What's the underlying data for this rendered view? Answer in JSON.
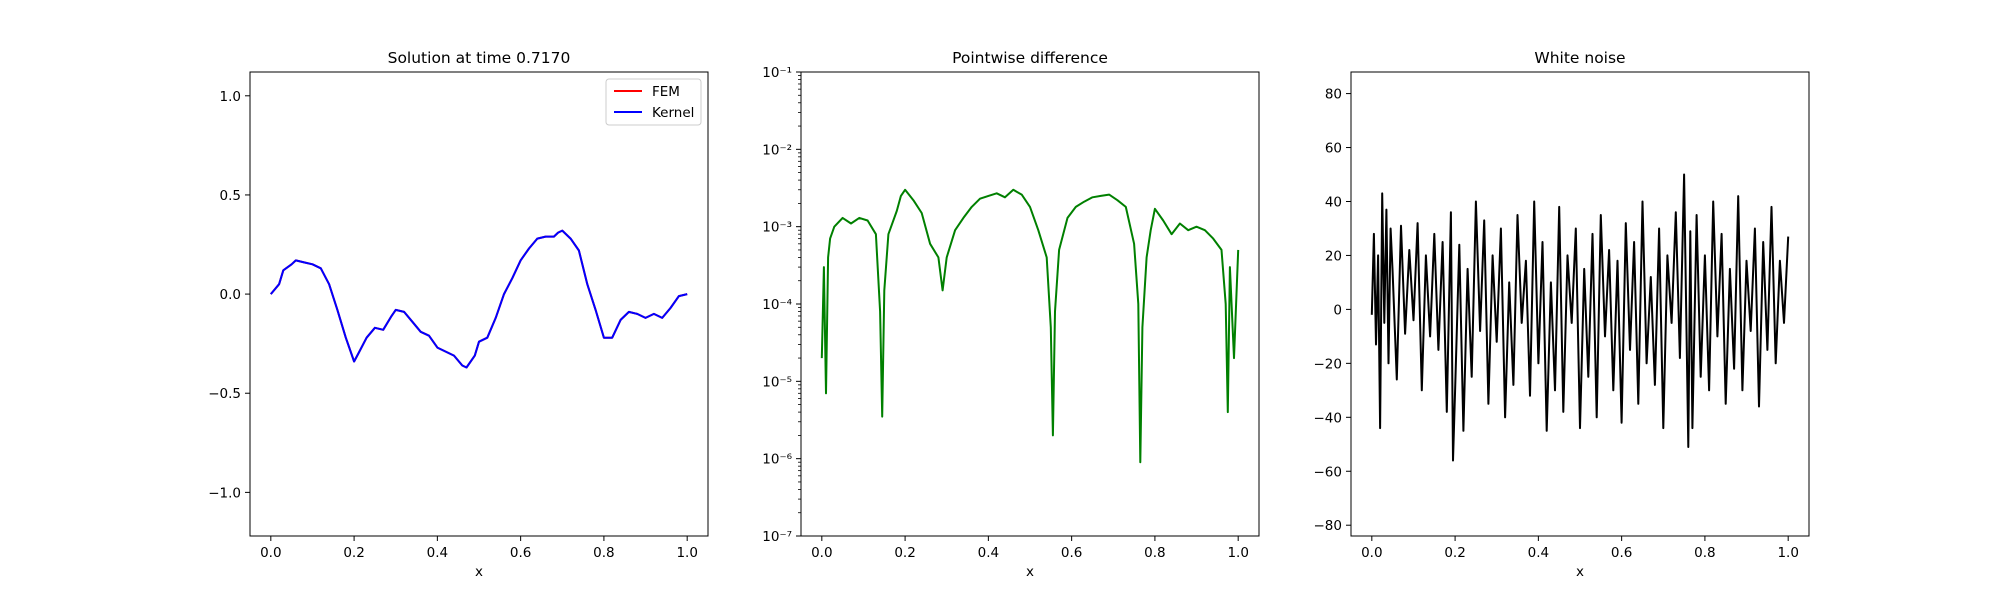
{
  "chart_data": [
    {
      "type": "line",
      "title": "Solution at time 0.7170",
      "xlabel": "x",
      "ylabel": "",
      "xlim": [
        -0.05,
        1.05
      ],
      "ylim": [
        -1.22,
        1.12
      ],
      "x_ticks": [
        0.0,
        0.2,
        0.4,
        0.6,
        0.8,
        1.0
      ],
      "x_tick_labels": [
        "0.0",
        "0.2",
        "0.4",
        "0.6",
        "0.8",
        "1.0"
      ],
      "y_ticks": [
        -1.0,
        -0.5,
        0.0,
        0.5,
        1.0
      ],
      "y_tick_labels": [
        "−1.0",
        "−0.5",
        "0.0",
        "0.5",
        "1.0"
      ],
      "legend_position": "top-right",
      "series": [
        {
          "name": "FEM",
          "color": "#ff0000",
          "x": [
            0.0,
            0.02,
            0.03,
            0.05,
            0.06,
            0.08,
            0.1,
            0.12,
            0.14,
            0.16,
            0.18,
            0.2,
            0.21,
            0.23,
            0.25,
            0.27,
            0.29,
            0.3,
            0.32,
            0.34,
            0.36,
            0.38,
            0.4,
            0.42,
            0.44,
            0.46,
            0.47,
            0.49,
            0.5,
            0.52,
            0.54,
            0.56,
            0.58,
            0.6,
            0.62,
            0.64,
            0.66,
            0.68,
            0.69,
            0.7,
            0.72,
            0.74,
            0.76,
            0.78,
            0.8,
            0.82,
            0.84,
            0.86,
            0.88,
            0.9,
            0.92,
            0.94,
            0.96,
            0.98,
            1.0
          ],
          "y": [
            0.0,
            0.05,
            0.12,
            0.15,
            0.17,
            0.16,
            0.15,
            0.13,
            0.05,
            -0.08,
            -0.22,
            -0.34,
            -0.3,
            -0.22,
            -0.17,
            -0.18,
            -0.11,
            -0.08,
            -0.09,
            -0.14,
            -0.19,
            -0.21,
            -0.27,
            -0.29,
            -0.31,
            -0.36,
            -0.37,
            -0.31,
            -0.24,
            -0.22,
            -0.12,
            0.0,
            0.08,
            0.17,
            0.23,
            0.28,
            0.29,
            0.29,
            0.31,
            0.32,
            0.28,
            0.22,
            0.05,
            -0.08,
            -0.22,
            -0.22,
            -0.13,
            -0.09,
            -0.1,
            -0.12,
            -0.1,
            -0.12,
            -0.07,
            -0.01,
            0.0
          ]
        },
        {
          "name": "Kernel",
          "color": "#0000ff",
          "x": [
            0.0,
            0.02,
            0.03,
            0.05,
            0.06,
            0.08,
            0.1,
            0.12,
            0.14,
            0.16,
            0.18,
            0.2,
            0.21,
            0.23,
            0.25,
            0.27,
            0.29,
            0.3,
            0.32,
            0.34,
            0.36,
            0.38,
            0.4,
            0.42,
            0.44,
            0.46,
            0.47,
            0.49,
            0.5,
            0.52,
            0.54,
            0.56,
            0.58,
            0.6,
            0.62,
            0.64,
            0.66,
            0.68,
            0.69,
            0.7,
            0.72,
            0.74,
            0.76,
            0.78,
            0.8,
            0.82,
            0.84,
            0.86,
            0.88,
            0.9,
            0.92,
            0.94,
            0.96,
            0.98,
            1.0
          ],
          "y": [
            0.0,
            0.05,
            0.12,
            0.15,
            0.17,
            0.16,
            0.15,
            0.13,
            0.05,
            -0.08,
            -0.22,
            -0.34,
            -0.3,
            -0.22,
            -0.17,
            -0.18,
            -0.11,
            -0.08,
            -0.09,
            -0.14,
            -0.19,
            -0.21,
            -0.27,
            -0.29,
            -0.31,
            -0.36,
            -0.37,
            -0.31,
            -0.24,
            -0.22,
            -0.12,
            0.0,
            0.08,
            0.17,
            0.23,
            0.28,
            0.29,
            0.29,
            0.31,
            0.32,
            0.28,
            0.22,
            0.05,
            -0.08,
            -0.22,
            -0.22,
            -0.13,
            -0.09,
            -0.1,
            -0.12,
            -0.1,
            -0.12,
            -0.07,
            -0.01,
            0.0
          ]
        }
      ]
    },
    {
      "type": "line",
      "title": "Pointwise difference",
      "xlabel": "x",
      "ylabel": "",
      "y_scale": "log",
      "xlim": [
        -0.05,
        1.05
      ],
      "ylim": [
        1e-07,
        0.1
      ],
      "x_ticks": [
        0.0,
        0.2,
        0.4,
        0.6,
        0.8,
        1.0
      ],
      "x_tick_labels": [
        "0.0",
        "0.2",
        "0.4",
        "0.6",
        "0.8",
        "1.0"
      ],
      "y_ticks": [
        1e-07,
        1e-06,
        1e-05,
        0.0001,
        0.001,
        0.01,
        0.1
      ],
      "y_tick_labels": [
        "10⁻⁷",
        "10⁻⁶",
        "10⁻⁵",
        "10⁻⁴",
        "10⁻³",
        "10⁻²",
        "10⁻¹"
      ],
      "series": [
        {
          "name": "",
          "color": "#008000",
          "x": [
            0.0,
            0.005,
            0.01,
            0.015,
            0.02,
            0.03,
            0.05,
            0.07,
            0.09,
            0.11,
            0.13,
            0.14,
            0.145,
            0.15,
            0.16,
            0.18,
            0.19,
            0.2,
            0.22,
            0.24,
            0.26,
            0.28,
            0.29,
            0.3,
            0.31,
            0.32,
            0.34,
            0.36,
            0.38,
            0.4,
            0.42,
            0.44,
            0.46,
            0.48,
            0.5,
            0.52,
            0.54,
            0.55,
            0.555,
            0.56,
            0.57,
            0.59,
            0.61,
            0.63,
            0.65,
            0.67,
            0.69,
            0.71,
            0.73,
            0.75,
            0.76,
            0.765,
            0.77,
            0.78,
            0.79,
            0.8,
            0.82,
            0.84,
            0.86,
            0.88,
            0.9,
            0.92,
            0.94,
            0.96,
            0.97,
            0.975,
            0.98,
            0.99,
            1.0
          ],
          "y": [
            2e-05,
            0.0003,
            7e-06,
            0.0004,
            0.0007,
            0.001,
            0.0013,
            0.0011,
            0.0013,
            0.0012,
            0.0008,
            8e-05,
            3.5e-06,
            0.00015,
            0.0008,
            0.0016,
            0.0025,
            0.003,
            0.0022,
            0.0015,
            0.0006,
            0.0004,
            0.00015,
            0.0004,
            0.0006,
            0.0009,
            0.0013,
            0.0018,
            0.0023,
            0.0025,
            0.0027,
            0.0024,
            0.003,
            0.0026,
            0.0018,
            0.0009,
            0.0004,
            5e-05,
            2e-06,
            8e-05,
            0.0005,
            0.0013,
            0.0018,
            0.0021,
            0.0024,
            0.0025,
            0.0026,
            0.0022,
            0.0018,
            0.0006,
            0.0001,
            9e-07,
            5e-05,
            0.0004,
            0.0009,
            0.0017,
            0.0012,
            0.0008,
            0.0011,
            0.0009,
            0.001,
            0.0009,
            0.0007,
            0.0005,
            0.0001,
            4e-06,
            0.0003,
            2e-05,
            0.0005
          ]
        }
      ]
    },
    {
      "type": "line",
      "title": "White noise",
      "xlabel": "x",
      "ylabel": "",
      "xlim": [
        -0.05,
        1.05
      ],
      "ylim": [
        -84,
        88
      ],
      "x_ticks": [
        0.0,
        0.2,
        0.4,
        0.6,
        0.8,
        1.0
      ],
      "x_tick_labels": [
        "0.0",
        "0.2",
        "0.4",
        "0.6",
        "0.8",
        "1.0"
      ],
      "y_ticks": [
        -80,
        -60,
        -40,
        -20,
        0,
        20,
        40,
        60,
        80
      ],
      "y_tick_labels": [
        "−80",
        "−60",
        "−40",
        "−20",
        "0",
        "20",
        "40",
        "60",
        "80"
      ],
      "series": [
        {
          "name": "",
          "color": "#000000",
          "x": [
            0.0,
            0.005,
            0.01,
            0.015,
            0.02,
            0.025,
            0.03,
            0.035,
            0.04,
            0.045,
            0.05,
            0.06,
            0.07,
            0.08,
            0.09,
            0.1,
            0.11,
            0.12,
            0.13,
            0.14,
            0.15,
            0.16,
            0.17,
            0.18,
            0.19,
            0.195,
            0.2,
            0.21,
            0.22,
            0.23,
            0.24,
            0.25,
            0.26,
            0.27,
            0.28,
            0.29,
            0.3,
            0.31,
            0.32,
            0.33,
            0.34,
            0.35,
            0.36,
            0.37,
            0.38,
            0.39,
            0.4,
            0.41,
            0.42,
            0.43,
            0.44,
            0.45,
            0.46,
            0.47,
            0.48,
            0.49,
            0.5,
            0.51,
            0.52,
            0.53,
            0.54,
            0.55,
            0.56,
            0.57,
            0.58,
            0.59,
            0.6,
            0.61,
            0.62,
            0.63,
            0.64,
            0.65,
            0.66,
            0.67,
            0.68,
            0.69,
            0.7,
            0.71,
            0.72,
            0.73,
            0.74,
            0.75,
            0.76,
            0.765,
            0.77,
            0.78,
            0.79,
            0.8,
            0.81,
            0.82,
            0.83,
            0.84,
            0.85,
            0.86,
            0.87,
            0.88,
            0.89,
            0.9,
            0.91,
            0.92,
            0.93,
            0.94,
            0.95,
            0.96,
            0.97,
            0.98,
            0.99,
            1.0
          ],
          "y": [
            -2,
            28,
            -13,
            20,
            -44,
            43,
            -5,
            37,
            -20,
            30,
            14,
            -26,
            31,
            -9,
            22,
            -4,
            32,
            -30,
            20,
            -10,
            28,
            -15,
            25,
            -38,
            36,
            -56,
            -30,
            24,
            -45,
            15,
            -25,
            40,
            -8,
            33,
            -35,
            20,
            -12,
            30,
            -40,
            10,
            -28,
            35,
            -5,
            18,
            -32,
            40,
            -20,
            25,
            -45,
            10,
            -30,
            38,
            -38,
            20,
            -5,
            30,
            -44,
            15,
            -25,
            28,
            -40,
            35,
            -10,
            22,
            -30,
            18,
            -42,
            32,
            -15,
            25,
            -35,
            40,
            -20,
            12,
            -28,
            30,
            -44,
            20,
            -5,
            36,
            -18,
            50,
            -51,
            29,
            -44,
            35,
            -25,
            20,
            -30,
            40,
            -10,
            28,
            -35,
            15,
            -22,
            42,
            -30,
            18,
            -8,
            30,
            -36,
            25,
            -15,
            38,
            -20,
            18,
            -5,
            27
          ]
        }
      ]
    }
  ]
}
